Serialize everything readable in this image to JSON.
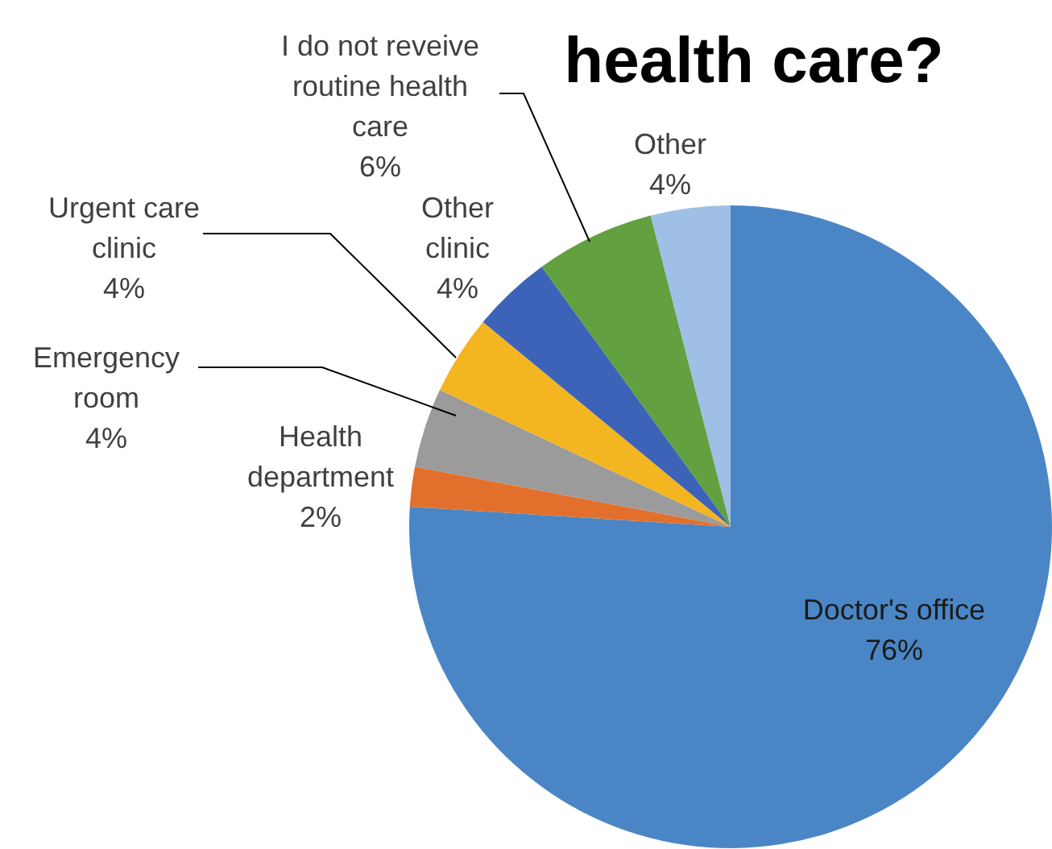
{
  "chart_data": {
    "type": "pie",
    "title": "health care?",
    "categories": [
      "Doctor's office",
      "Health department",
      "Emergency room",
      "Urgent care clinic",
      "Other clinic",
      "I do not reveive routine health care",
      "Other"
    ],
    "values": [
      76,
      2,
      4,
      4,
      4,
      6,
      4
    ],
    "value_labels": [
      "76%",
      "2%",
      "4%",
      "4%",
      "4%",
      "6%",
      "4%"
    ],
    "colors": [
      "#4a86c5",
      "#e2702c",
      "#9b9b9b",
      "#f3b520",
      "#3c63b8",
      "#62a040",
      "#9fbfe5"
    ]
  }
}
